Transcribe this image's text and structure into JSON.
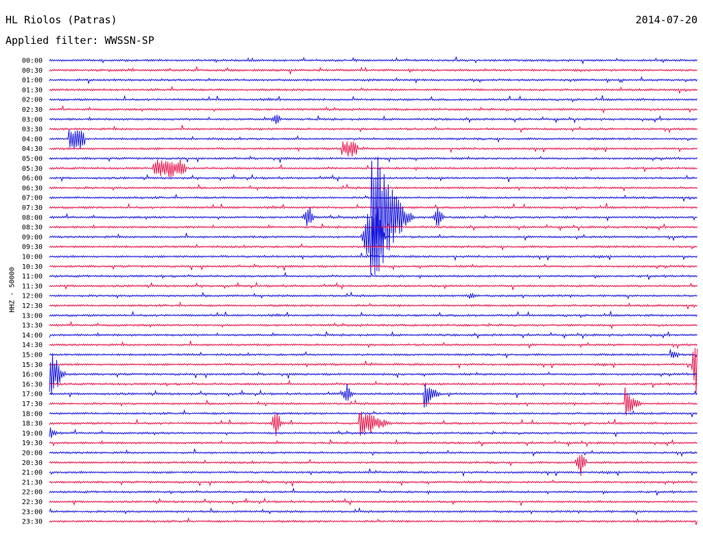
{
  "header": {
    "station": "HL Riolos (Patras)",
    "filter": "Applied filter: WWSSN-SP",
    "date": "2014-07-20"
  },
  "chart_data": {
    "type": "line",
    "title": "HL Riolos (Patras)",
    "subtitle": "Applied filter: WWSSN-SP",
    "ylabel": "HHZ - 50000",
    "traces": [
      "00:00",
      "00:30",
      "01:00",
      "01:30",
      "02:00",
      "02:30",
      "03:00",
      "03:30",
      "04:00",
      "04:30",
      "05:00",
      "05:30",
      "06:00",
      "06:30",
      "07:00",
      "07:30",
      "08:00",
      "08:30",
      "09:00",
      "09:30",
      "10:00",
      "10:30",
      "11:00",
      "11:30",
      "12:00",
      "12:30",
      "13:00",
      "13:30",
      "14:00",
      "14:30",
      "15:00",
      "15:30",
      "16:00",
      "16:30",
      "17:00",
      "17:30",
      "18:00",
      "18:30",
      "19:00",
      "19:30",
      "20:00",
      "20:30",
      "21:00",
      "21:30",
      "22:00",
      "22:30",
      "23:00",
      "23:30"
    ],
    "colors": [
      "#1414dc",
      "#e6144b"
    ],
    "events": [
      {
        "trace": "04:00",
        "at": 0.03,
        "amp": 14,
        "len": 0.025,
        "kind": "block"
      },
      {
        "trace": "04:30",
        "at": 0.45,
        "amp": 12,
        "len": 0.025,
        "kind": "block"
      },
      {
        "trace": "05:30",
        "at": 0.16,
        "amp": 13,
        "len": 0.05,
        "kind": "block"
      },
      {
        "trace": "08:00",
        "at": 0.5,
        "amp": 105,
        "len": 0.07,
        "kind": "quake"
      },
      {
        "trace": "08:00",
        "at": 0.4,
        "amp": 20,
        "len": 0.01,
        "kind": "spike"
      },
      {
        "trace": "08:00",
        "at": 0.6,
        "amp": 18,
        "len": 0.01,
        "kind": "spike"
      },
      {
        "trace": "09:00",
        "at": 0.5,
        "amp": 70,
        "len": 0.02,
        "kind": "spike"
      },
      {
        "trace": "16:00",
        "at": 0.0,
        "amp": 45,
        "len": 0.03,
        "kind": "quake"
      },
      {
        "trace": "15:30",
        "at": 1.0,
        "amp": 60,
        "len": 0.01,
        "kind": "spike"
      },
      {
        "trace": "17:00",
        "at": 0.58,
        "amp": 22,
        "len": 0.03,
        "kind": "quake"
      },
      {
        "trace": "17:30",
        "at": 0.89,
        "amp": 22,
        "len": 0.03,
        "kind": "quake"
      },
      {
        "trace": "18:30",
        "at": 0.48,
        "amp": 24,
        "len": 0.06,
        "kind": "quake"
      },
      {
        "trace": "17:00",
        "at": 0.46,
        "amp": 16,
        "len": 0.01,
        "kind": "spike"
      },
      {
        "trace": "18:30",
        "at": 0.35,
        "amp": 20,
        "len": 0.01,
        "kind": "spike"
      },
      {
        "trace": "20:30",
        "at": 0.82,
        "amp": 24,
        "len": 0.01,
        "kind": "spike"
      },
      {
        "trace": "03:00",
        "at": 0.35,
        "amp": 10,
        "len": 0.01,
        "kind": "spike"
      },
      {
        "trace": "15:00",
        "at": 0.96,
        "amp": 10,
        "len": 0.02,
        "kind": "quake"
      },
      {
        "trace": "19:00",
        "at": 0.0,
        "amp": 10,
        "len": 0.02,
        "kind": "quake"
      },
      {
        "trace": "12:00",
        "at": 0.65,
        "amp": 5,
        "len": 0.02,
        "kind": "quake"
      }
    ]
  }
}
